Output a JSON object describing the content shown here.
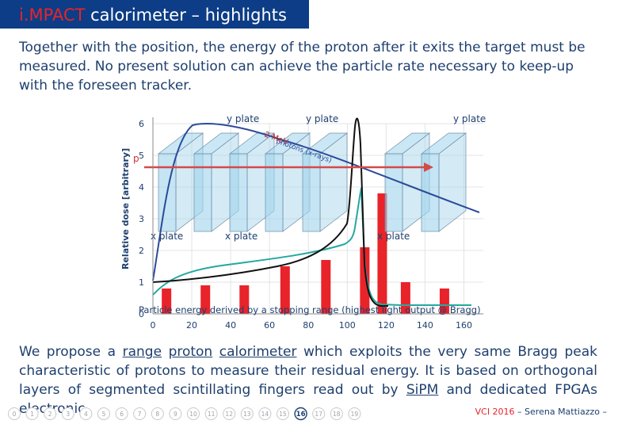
{
  "slide": {
    "title_accent": "i.MPACT",
    "title_rest": " calorimeter – highlights",
    "intro": "Together with the position, the energy of the proton after it exits the target must be measured. No present solution can achieve the particle rate necessary to keep-up with the foreseen tracker.",
    "p2": {
      "t1": "We propose a ",
      "range": "range",
      "sp1": " ",
      "proton": "proton",
      "sp2": " ",
      "calorimeter": "calorimeter",
      "t2": " which exploits the very same Bragg peak characteristic of protons to measure their residual energy. It is based on orthogonal layers of segmented scintillating fingers read out by ",
      "sipm": "SiPM",
      "t3": " and dedicated FPGAs electronic."
    }
  },
  "figure": {
    "labels": {
      "y_plate": "y plate",
      "x_plate": "x plate",
      "p": "p",
      "gamma_line1": "2  MeV",
      "gamma_line2": "photons (x-rays)",
      "caption": "Particle energy derived by a stopping range (highest light output @ Bragg)"
    }
  },
  "chart_data": {
    "type": "bar",
    "ylabel": "Relative dose [arbitrary]",
    "xlim": [
      0,
      170
    ],
    "ylim": [
      0,
      6
    ],
    "x_ticks": [
      0,
      20,
      40,
      60,
      80,
      100,
      120,
      140,
      160
    ],
    "y_ticks": [
      0,
      1,
      2,
      3,
      4,
      5,
      6
    ],
    "bars": {
      "x": [
        7,
        27,
        47,
        68,
        89,
        109,
        118,
        130,
        150
      ],
      "values": [
        0.8,
        0.9,
        0.9,
        1.5,
        1.7,
        2.1,
        3.8,
        1.0,
        0.8
      ]
    }
  },
  "footer": {
    "pages": [
      "0",
      "1",
      "2",
      "3",
      "4",
      "5",
      "6",
      "7",
      "8",
      "9",
      "10",
      "11",
      "12",
      "13",
      "14",
      "15",
      "16",
      "17",
      "18",
      "19"
    ],
    "current": "16",
    "credit_event": "VCI 2016",
    "credit_rest": " – Serena Mattiazzo –"
  },
  "colors": {
    "title_bg": "#0d3d86",
    "accent_red": "#e8232a",
    "text_blue": "#1e3f6e",
    "plate_fill": "#9fd3ec"
  }
}
